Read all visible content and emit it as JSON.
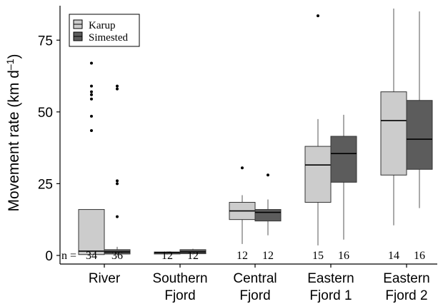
{
  "chart_data": {
    "type": "boxplot",
    "title": "",
    "xlabel": "",
    "ylabel": "Movement rate (km d",
    "ylabel_unit_exp": "–1",
    "ylabel_close": ")",
    "ylim": [
      -3,
      87
    ],
    "yticks": [
      0,
      25,
      50,
      75
    ],
    "grid": false,
    "legend_position": "top-left",
    "n_prefix": "n =",
    "categories": [
      {
        "label_lines": [
          "River"
        ]
      },
      {
        "label_lines": [
          "Southern",
          "Fjord"
        ]
      },
      {
        "label_lines": [
          "Central",
          "Fjord"
        ]
      },
      {
        "label_lines": [
          "Eastern",
          "Fjord 1"
        ]
      },
      {
        "label_lines": [
          "Eastern",
          "Fjord 2"
        ]
      }
    ],
    "series": [
      {
        "name": "Karup",
        "color": "#cccccc",
        "n": [
          "34",
          "12",
          "12",
          "15",
          "14"
        ],
        "boxes": [
          {
            "min": 0.2,
            "q1": 0.3,
            "median": 1.5,
            "q3": 16,
            "max": 16,
            "outliers": [
              43.5,
              48.5,
              54.5,
              56,
              57,
              59,
              67
            ]
          },
          {
            "min": 0.3,
            "q1": 0.5,
            "median": 0.9,
            "q3": 1.2,
            "max": 1.4,
            "outliers": []
          },
          {
            "min": 4,
            "q1": 12.5,
            "median": 15.5,
            "q3": 18.5,
            "max": 21,
            "outliers": [
              30.5
            ]
          },
          {
            "min": 3.5,
            "q1": 18.5,
            "median": 31.5,
            "q3": 38,
            "max": 47.5,
            "outliers": [
              83.5
            ]
          },
          {
            "min": 10.5,
            "q1": 28,
            "median": 47,
            "q3": 57,
            "max": 86,
            "outliers": []
          }
        ]
      },
      {
        "name": "Simested",
        "color": "#5c5c5c",
        "n": [
          "36",
          "12",
          "12",
          "16",
          "16"
        ],
        "boxes": [
          {
            "min": 0.2,
            "q1": 0.5,
            "median": 1.2,
            "q3": 2,
            "max": 3,
            "outliers": [
              13.5,
              25,
              26,
              58,
              59
            ]
          },
          {
            "min": 0.3,
            "q1": 0.6,
            "median": 1.2,
            "q3": 2,
            "max": 2.3,
            "outliers": []
          },
          {
            "min": 7,
            "q1": 12,
            "median": 15,
            "q3": 16,
            "max": 19.5,
            "outliers": [
              28
            ]
          },
          {
            "min": 5.5,
            "q1": 25.5,
            "median": 35.5,
            "q3": 41.5,
            "max": 49,
            "outliers": []
          },
          {
            "min": 16.5,
            "q1": 30,
            "median": 40.5,
            "q3": 54,
            "max": 85,
            "outliers": []
          }
        ]
      }
    ]
  }
}
